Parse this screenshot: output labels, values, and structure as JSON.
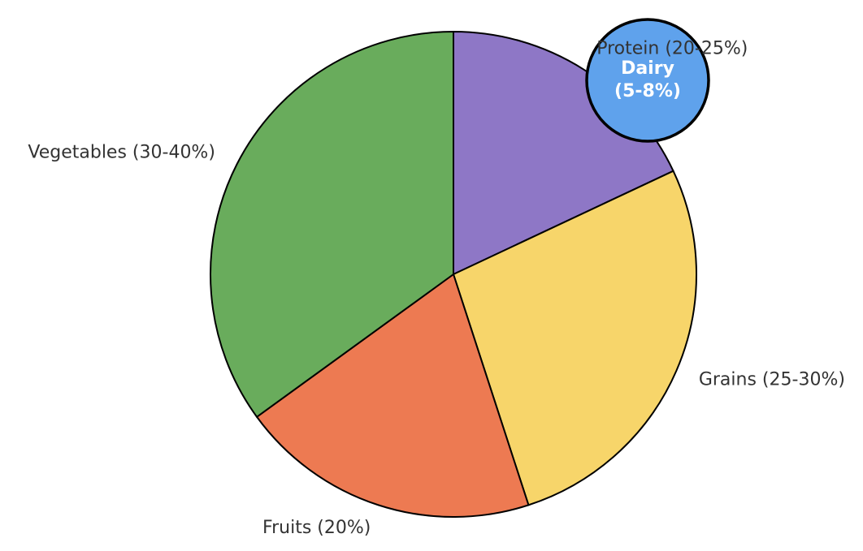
{
  "chart_data": {
    "type": "pie",
    "categories": [
      "Protein (20-25%)",
      "Grains (25-30%)",
      "Fruits (20%)",
      "Vegetables (30-40%)"
    ],
    "values": [
      18,
      27,
      20,
      35
    ],
    "colors": [
      "#8e77c6",
      "#f7d56a",
      "#ed7a52",
      "#69ac5c"
    ],
    "start_angle": 90,
    "direction": "clockwise",
    "inset": {
      "lines": [
        "Dairy",
        "(5-8%)"
      ],
      "color": "#5fa2ec"
    }
  }
}
